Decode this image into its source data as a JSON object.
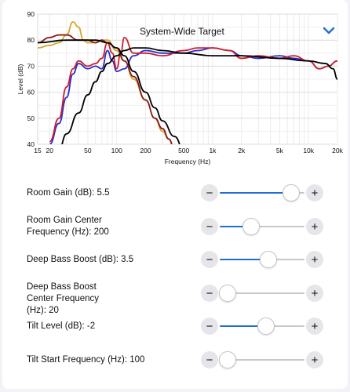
{
  "dropdown": {
    "selected": "System-Wide Target",
    "icon": "chevron-down-icon"
  },
  "chart_data": {
    "type": "line",
    "title": "",
    "xlabel": "Frequency (Hz)",
    "ylabel": "Level (dB)",
    "x_scale": "log",
    "xlim": [
      15,
      20000
    ],
    "ylim": [
      40,
      90
    ],
    "x_ticks": [
      15,
      20,
      50,
      100,
      200,
      500,
      1000,
      2000,
      5000,
      10000,
      20000
    ],
    "x_tick_labels": [
      "15",
      "20",
      "50",
      "100",
      "200",
      "500",
      "1k",
      "2k",
      "5k",
      "10k",
      "20k"
    ],
    "y_ticks": [
      40,
      50,
      60,
      70,
      80,
      90
    ],
    "grid": true,
    "series": [
      {
        "color": "#d4a72c",
        "x": [
          15,
          20,
          25,
          30,
          35,
          40,
          45,
          50,
          60,
          70,
          80,
          100,
          120,
          150,
          200,
          250,
          300,
          350,
          400
        ],
        "y": [
          77,
          78,
          79,
          82,
          87,
          85,
          80,
          79,
          79,
          80,
          80,
          76,
          72,
          65,
          57,
          50,
          45,
          42,
          38
        ]
      },
      {
        "color": "#2a2ad0",
        "x": [
          20,
          25,
          30,
          35,
          40,
          50,
          60,
          70,
          80,
          90,
          100,
          120,
          150,
          200,
          300,
          500,
          700,
          1000,
          1500,
          2000,
          3000,
          5000,
          7000,
          10000,
          13000,
          16000,
          20000
        ],
        "y": [
          40,
          48,
          58,
          67,
          71,
          69,
          70,
          69,
          76,
          72,
          68,
          69,
          74,
          76,
          75,
          75,
          76,
          77,
          76,
          74,
          73,
          74,
          73,
          72,
          69,
          70,
          72
        ]
      },
      {
        "color": "#c8202c",
        "x": [
          20,
          25,
          30,
          35,
          40,
          50,
          60,
          70,
          80,
          90,
          100,
          110,
          120,
          150,
          200,
          300,
          500,
          700,
          1000,
          1500,
          2000,
          3000,
          5000,
          7000,
          10000,
          13000,
          16000,
          20000
        ],
        "y": [
          41,
          50,
          62,
          69,
          72,
          70,
          71,
          73,
          79,
          75,
          69,
          75,
          81,
          75,
          75,
          74,
          76,
          77,
          77,
          76,
          73,
          74,
          73,
          74,
          72,
          69,
          70,
          72
        ]
      },
      {
        "color": "#8b1a1a",
        "x": [
          15,
          20,
          25,
          30,
          40,
          50,
          60,
          70,
          80,
          100,
          120,
          150,
          200,
          250,
          300,
          350,
          400
        ],
        "y": [
          79,
          81,
          82,
          82,
          80,
          80,
          79,
          80,
          79,
          77,
          72,
          66,
          57,
          50,
          46,
          42,
          38
        ]
      },
      {
        "color": "#000000",
        "x": [
          15,
          30,
          60,
          80,
          100,
          120,
          150,
          200,
          250,
          300,
          400,
          500
        ],
        "y": [
          79,
          80,
          80,
          79,
          77,
          74,
          68,
          60,
          54,
          49,
          43,
          38
        ]
      },
      {
        "color": "#000000",
        "x": [
          25,
          30,
          40,
          50,
          60,
          70,
          80,
          100,
          120,
          150,
          200,
          300,
          500,
          1000,
          2000,
          5000,
          10000,
          15000,
          18000,
          20000
        ],
        "y": [
          38,
          44,
          52,
          59,
          64,
          68,
          71,
          74,
          76,
          77,
          77,
          76,
          75,
          74,
          74,
          73,
          72,
          71,
          69,
          65
        ]
      }
    ]
  },
  "controls": [
    {
      "label": "Room Gain (dB): 5.5",
      "value_fraction": 0.84
    },
    {
      "label": "Room Gain Center Frequency (Hz): 200",
      "value_fraction": 0.37
    },
    {
      "label": "Deep Bass Boost (dB): 3.5",
      "value_fraction": 0.57
    },
    {
      "label": "Deep Bass Boost Center Frequency (Hz): 20",
      "value_fraction": 0.09
    },
    {
      "label": "Tilt Level (dB): -2",
      "value_fraction": 0.55
    },
    {
      "label": "Tilt Start Frequency (Hz): 100",
      "value_fraction": 0.09
    }
  ],
  "stepper": {
    "minus": "−",
    "plus": "+"
  }
}
